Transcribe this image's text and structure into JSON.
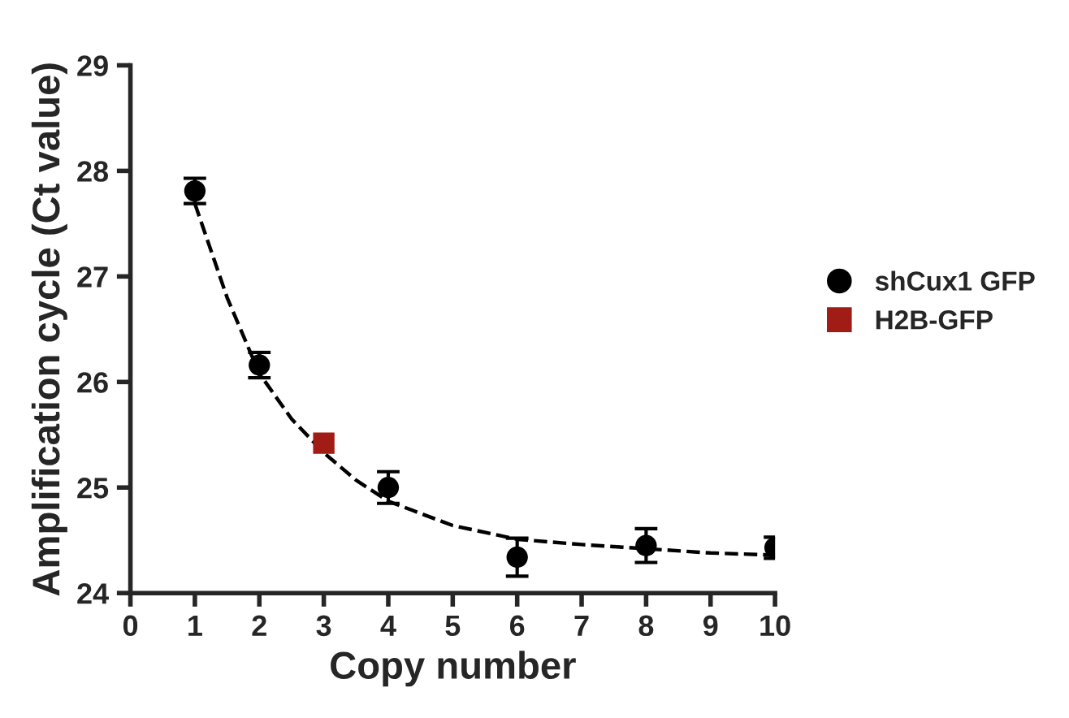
{
  "chart_data": {
    "type": "scatter",
    "xlabel": "Copy number",
    "ylabel": "Amplification cycle (Ct value)",
    "xlim": [
      0,
      10
    ],
    "ylim": [
      24,
      29
    ],
    "xticks": [
      0,
      1,
      2,
      3,
      4,
      5,
      6,
      7,
      8,
      9,
      10
    ],
    "yticks": [
      24,
      25,
      26,
      27,
      28,
      29
    ],
    "grid": false,
    "legend": "right",
    "series": [
      {
        "name": "shCux1 GFP",
        "color": "#000000",
        "marker": "circle",
        "x": [
          1,
          2,
          4,
          6,
          8,
          10
        ],
        "values": [
          27.81,
          26.16,
          25.0,
          24.34,
          24.45,
          24.43
        ],
        "errors": [
          0.12,
          0.12,
          0.15,
          0.18,
          0.16,
          0.1
        ]
      },
      {
        "name": "H2B-GFP",
        "color": "#a01c14",
        "marker": "square",
        "x": [
          3
        ],
        "values": [
          25.42
        ]
      },
      {
        "type": "line",
        "color": "#000000",
        "marker": "none",
        "line_style": "dashed",
        "x": [
          1,
          1.5,
          2,
          2.5,
          3,
          3.5,
          4,
          5,
          6,
          7,
          8,
          9,
          10
        ],
        "values": [
          27.69,
          26.8,
          26.08,
          25.65,
          25.33,
          25.07,
          24.87,
          24.64,
          24.51,
          24.46,
          24.42,
          24.38,
          24.36
        ]
      }
    ]
  }
}
